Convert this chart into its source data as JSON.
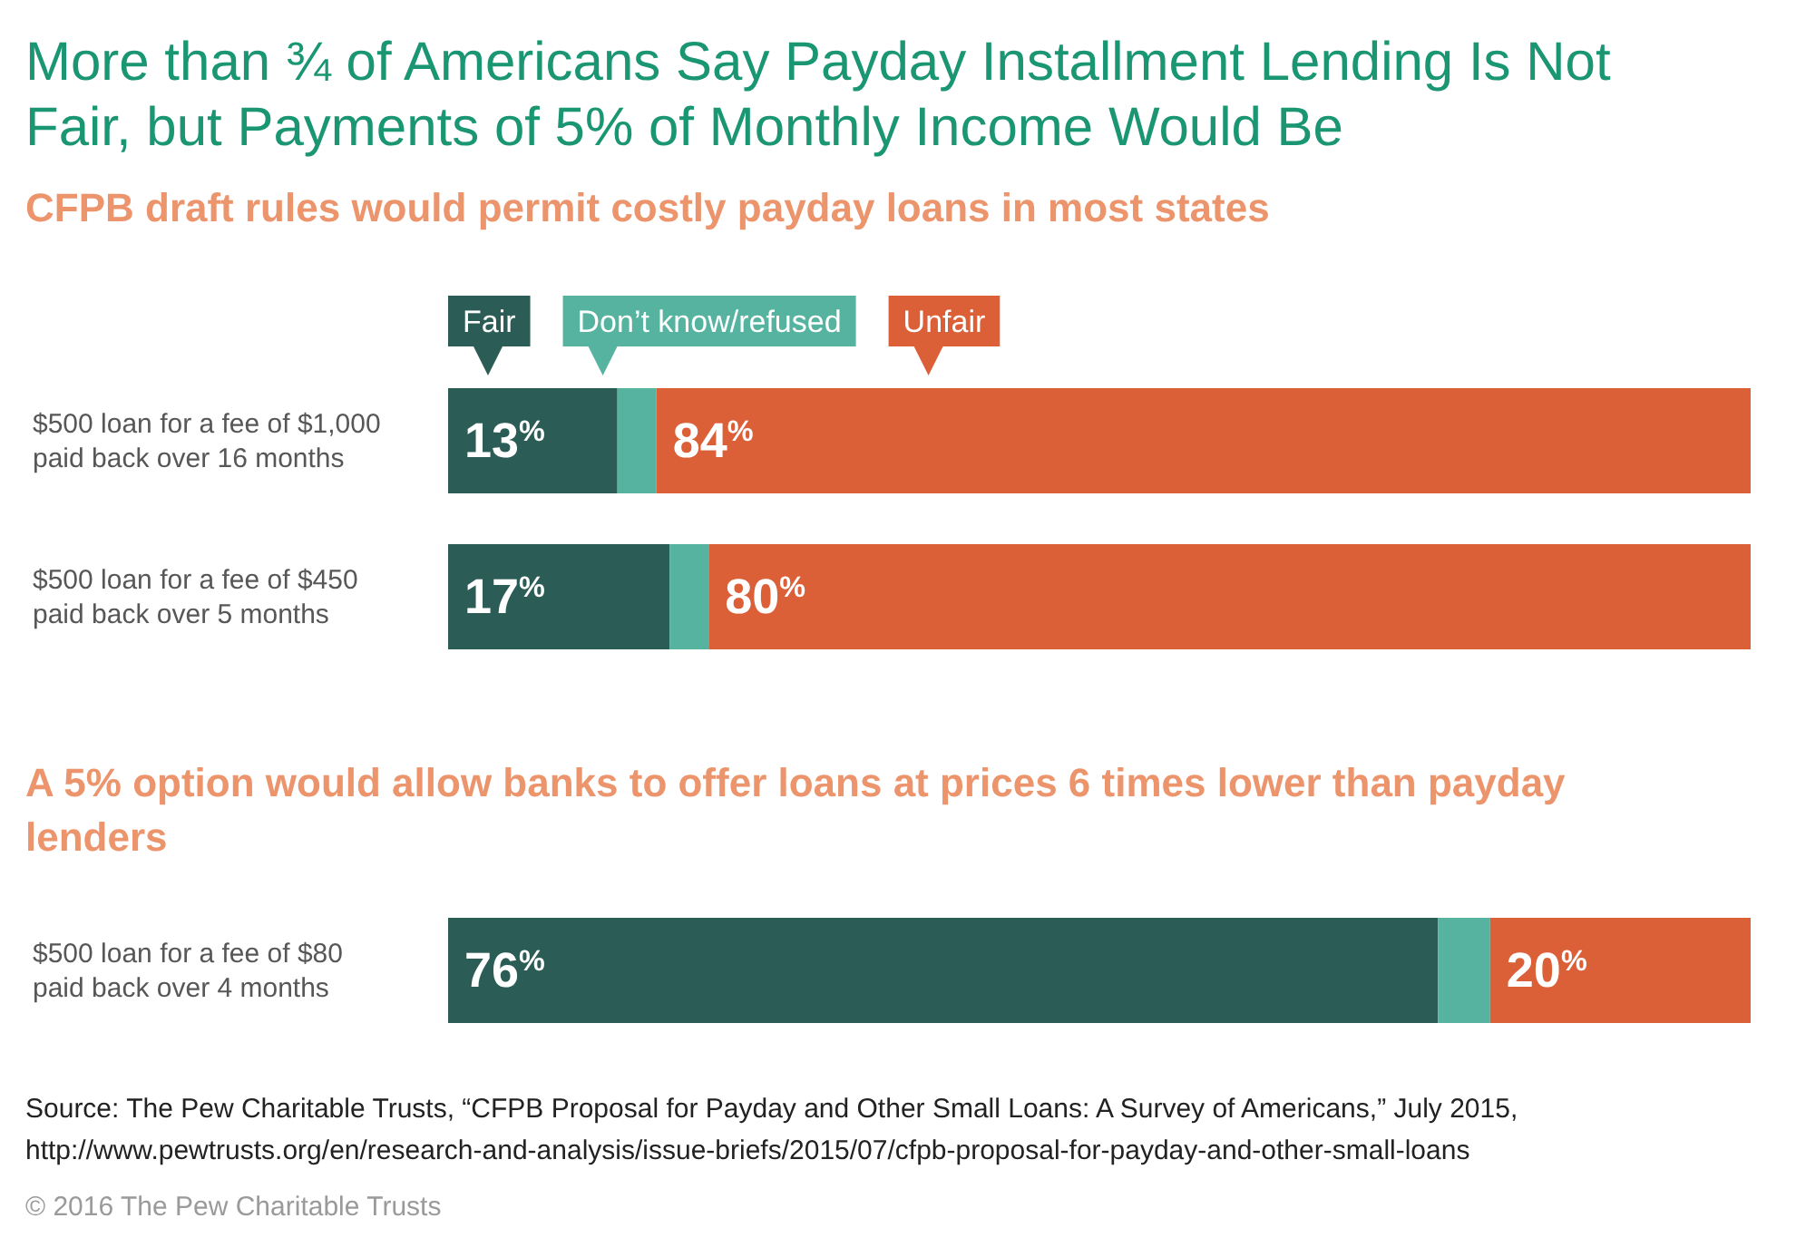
{
  "chart_data": [
    {
      "type": "bar",
      "orientation": "horizontal",
      "stacked": true,
      "title": "More than ¾ of Americans Say Payday Installment Lending Is Not Fair, but Payments of 5% of Monthly Income Would Be",
      "subtitle": "CFPB draft rules would permit costly payday loans in most states",
      "categories": [
        "$500 loan for a fee of $1,000 paid back over 16 months",
        "$500 loan for a fee of $450 paid back over 5 months"
      ],
      "series": [
        {
          "name": "Fair",
          "color": "#2b5c55",
          "values": [
            13,
            17
          ],
          "value_labels": [
            "13$^{%}$",
            "17$^{%}$"
          ]
        },
        {
          "name": "Don’t know/refused",
          "color": "#56b3a0",
          "values": [
            3,
            3
          ],
          "value_labels": [
            null,
            null
          ]
        },
        {
          "name": "Unfair",
          "color": "#db5f37",
          "values": [
            84,
            80
          ],
          "value_labels": [
            "84$^{%}$",
            "80$^{%}$"
          ]
        }
      ],
      "xlim": [
        0,
        100
      ],
      "tick_labels": "y",
      "legend": "top left"
    },
    {
      "type": "bar",
      "orientation": "horizontal",
      "stacked": true,
      "subtitle": "A 5% option would allow banks to offer loans at prices 6 times lower than payday lenders",
      "categories": [
        "$500 loan for a fee of $80 paid back over 4 months"
      ],
      "series": [
        {
          "color": "#2b5c55",
          "values": [
            76
          ],
          "value_labels": [
            "76$^{%}$"
          ]
        },
        {
          "color": "#56b3a0",
          "values": [
            4
          ],
          "value_labels": [
            null
          ]
        },
        {
          "color": "#db5f37",
          "values": [
            20
          ],
          "value_labels": [
            "20$^{%}$"
          ]
        }
      ],
      "xlim": [
        0,
        100
      ],
      "tick_labels": "y",
      "annotations": [
        "Source: The Pew Charitable Trusts, “CFPB Proposal for Payday and Other Small Loans: A Survey of Americans,” July 2015, http://www.pewtrusts.org/en/research-and-analysis/issue-briefs/2015/07/cfpb-proposal-for-payday-and-other-small-loans",
        "© 2016 The Pew Charitable Trusts"
      ]
    }
  ]
}
